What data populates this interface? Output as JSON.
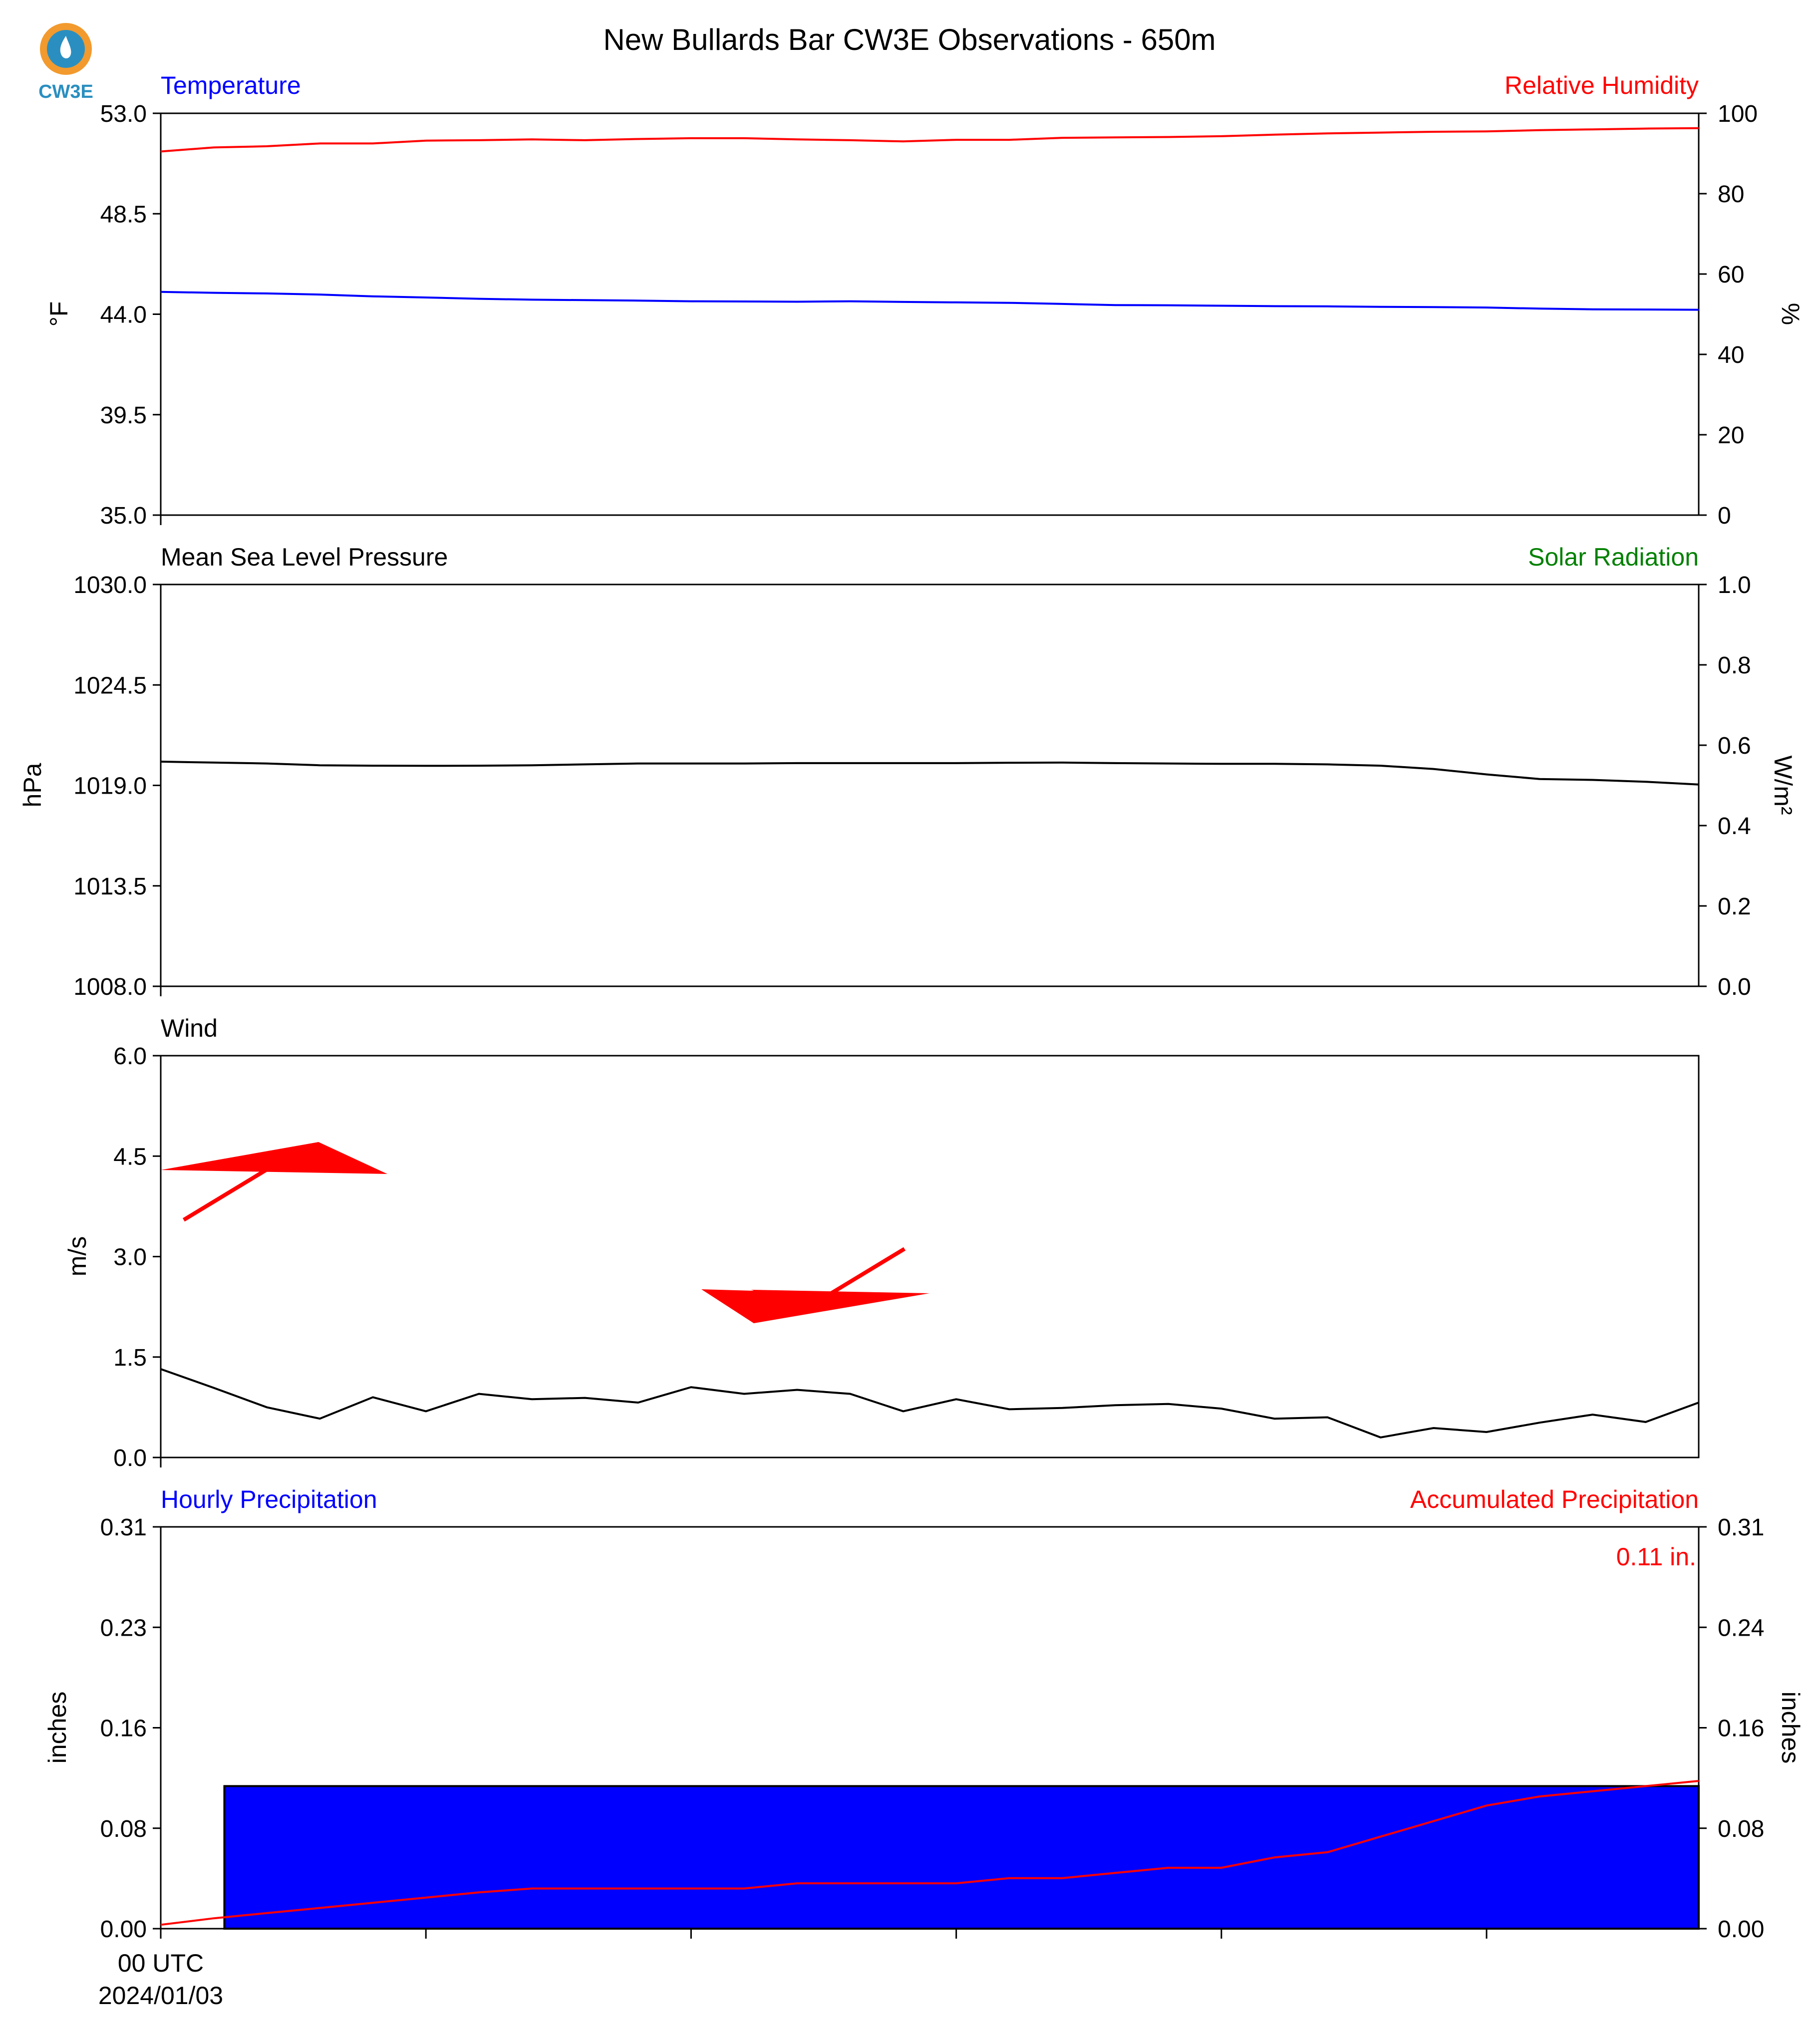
{
  "title": "New Bullards Bar CW3E Observations - 650m",
  "logo": {
    "text": "CW3E",
    "colors": {
      "ring": "#f29a2e",
      "drop": "#2a8fc0",
      "text": "#2a8fc0"
    }
  },
  "colors": {
    "blue": "#0000ff",
    "red": "#ff0000",
    "green": "#008000",
    "black": "#000000",
    "bar_fill": "#0000ff"
  },
  "panels": {
    "temp": {
      "left_title": "Temperature",
      "right_title": "Relative Humidity",
      "left_ylabel": "°F",
      "right_ylabel": "%",
      "left_ticks": [
        "53.0",
        "48.5",
        "44.0",
        "39.5",
        "35.0"
      ],
      "right_ticks": [
        "100",
        "80",
        "60",
        "40",
        "20",
        "0"
      ]
    },
    "pres": {
      "left_title": "Mean Sea Level Pressure",
      "right_title": "Solar Radiation",
      "left_ylabel": "hPa",
      "right_ylabel": "W/m²",
      "left_ticks": [
        "1030.0",
        "1024.5",
        "1019.0",
        "1013.5",
        "1008.0"
      ],
      "right_ticks": [
        "1.0",
        "0.8",
        "0.6",
        "0.4",
        "0.2",
        "0.0"
      ]
    },
    "wind": {
      "left_title": "Wind",
      "left_ylabel": "m/s",
      "left_ticks": [
        "6.0",
        "4.5",
        "3.0",
        "1.5",
        "0.0"
      ]
    },
    "precip": {
      "left_title": "Hourly Precipitation",
      "right_title": "Accumulated Precipitation",
      "left_ylabel": "inches",
      "right_ylabel": "inches",
      "left_ticks": [
        "0.31",
        "0.23",
        "0.16",
        "0.08",
        "0.00"
      ],
      "right_ticks": [
        "0.31",
        "0.24",
        "0.16",
        "0.08",
        "0.00"
      ],
      "total_label": "0.11 in."
    }
  },
  "x_axis": {
    "first_tick_line1": "00 UTC",
    "first_tick_line2": "2024/01/03"
  },
  "chart_data": [
    {
      "type": "line",
      "title": "Temperature",
      "ylabel": "°F",
      "xlim": [
        0,
        29
      ],
      "ylim": [
        35.0,
        53.0
      ],
      "series": [
        {
          "name": "Temperature",
          "color": "#0000ff",
          "x": [
            0,
            1,
            2,
            3,
            4,
            5,
            6,
            7,
            8,
            9,
            10,
            11,
            12,
            13,
            14,
            15,
            16,
            17,
            18,
            19,
            20,
            21,
            22,
            23,
            24,
            25,
            26,
            27,
            28,
            29
          ],
          "values": [
            45.0,
            44.96,
            44.93,
            44.88,
            44.8,
            44.75,
            44.69,
            44.65,
            44.63,
            44.61,
            44.58,
            44.57,
            44.56,
            44.58,
            44.55,
            44.53,
            44.51,
            44.46,
            44.41,
            44.4,
            44.38,
            44.36,
            44.35,
            44.33,
            44.32,
            44.3,
            44.25,
            44.22,
            44.21,
            44.2
          ]
        }
      ]
    },
    {
      "type": "line",
      "title": "Relative Humidity",
      "ylabel": "%",
      "ylim": [
        0,
        100
      ],
      "series": [
        {
          "name": "Relative Humidity",
          "color": "#ff0000",
          "x": [
            0,
            1,
            2,
            3,
            4,
            5,
            6,
            7,
            8,
            9,
            10,
            11,
            12,
            13,
            14,
            15,
            16,
            17,
            18,
            19,
            20,
            21,
            22,
            23,
            24,
            25,
            26,
            27,
            28,
            29
          ],
          "values": [
            90.5,
            91.5,
            91.8,
            92.5,
            92.5,
            93.2,
            93.3,
            93.5,
            93.3,
            93.6,
            93.8,
            93.8,
            93.5,
            93.3,
            93.0,
            93.4,
            93.4,
            93.9,
            94.0,
            94.1,
            94.3,
            94.7,
            95.0,
            95.2,
            95.4,
            95.5,
            95.8,
            96.0,
            96.2,
            96.3
          ]
        }
      ]
    },
    {
      "type": "line",
      "title": "Mean Sea Level Pressure",
      "ylabel": "hPa",
      "ylim": [
        1008.0,
        1030.0
      ],
      "series": [
        {
          "name": "Mean Sea Level Pressure",
          "color": "#000000",
          "x": [
            0,
            1,
            2,
            3,
            4,
            5,
            6,
            7,
            8,
            9,
            10,
            11,
            12,
            13,
            14,
            15,
            16,
            17,
            18,
            19,
            20,
            21,
            22,
            23,
            24,
            25,
            26,
            27,
            28,
            29
          ],
          "values": [
            1020.3,
            1020.25,
            1020.2,
            1020.1,
            1020.08,
            1020.07,
            1020.08,
            1020.1,
            1020.15,
            1020.2,
            1020.2,
            1020.2,
            1020.22,
            1020.22,
            1020.22,
            1020.22,
            1020.24,
            1020.25,
            1020.22,
            1020.2,
            1020.18,
            1020.18,
            1020.15,
            1020.08,
            1019.9,
            1019.6,
            1019.35,
            1019.3,
            1019.2,
            1019.05
          ]
        }
      ]
    },
    {
      "type": "line",
      "title": "Wind",
      "ylabel": "m/s",
      "ylim": [
        0.0,
        6.0
      ],
      "series": [
        {
          "name": "Wind",
          "color": "#000000",
          "x": [
            0,
            1,
            2,
            3,
            4,
            5,
            6,
            7,
            8,
            9,
            10,
            11,
            12,
            13,
            14,
            15,
            16,
            17,
            18,
            19,
            20,
            21,
            22,
            23,
            24,
            25,
            26,
            27,
            28,
            29
          ],
          "values": [
            1.32,
            1.04,
            0.75,
            0.58,
            0.9,
            0.69,
            0.95,
            0.87,
            0.89,
            0.82,
            1.05,
            0.95,
            1.01,
            0.95,
            0.69,
            0.87,
            0.72,
            0.74,
            0.78,
            0.8,
            0.73,
            0.58,
            0.6,
            0.3,
            0.44,
            0.38,
            0.52,
            0.64,
            0.53,
            0.82
          ]
        }
      ],
      "barbs": [
        {
          "x": 0.5,
          "y": 3.6,
          "direction": "northeast",
          "flag_count": 1
        },
        {
          "x": 14.0,
          "y": 3.1,
          "direction": "northeast",
          "flag_count": 1
        }
      ]
    },
    {
      "type": "bar",
      "title": "Hourly Precipitation",
      "ylabel": "inches",
      "ylim": [
        0.0,
        0.31
      ],
      "bars": [
        {
          "x_start": 1.2,
          "x_end": 29,
          "value": 0.11
        }
      ]
    },
    {
      "type": "line",
      "title": "Accumulated Precipitation",
      "ylabel": "inches",
      "ylim": [
        0.0,
        0.31
      ],
      "series": [
        {
          "name": "Accumulated Precipitation",
          "color": "#ff0000",
          "x": [
            0,
            1,
            2,
            3,
            4,
            5,
            6,
            7,
            8,
            9,
            10,
            11,
            12,
            13,
            14,
            15,
            16,
            17,
            18,
            19,
            20,
            21,
            22,
            23,
            24,
            25,
            26,
            27,
            28,
            29
          ],
          "values": [
            0.003,
            0.008,
            0.012,
            0.016,
            0.02,
            0.024,
            0.028,
            0.031,
            0.031,
            0.031,
            0.031,
            0.031,
            0.035,
            0.035,
            0.035,
            0.035,
            0.039,
            0.039,
            0.043,
            0.047,
            0.047,
            0.055,
            0.059,
            0.071,
            0.083,
            0.095,
            0.102,
            0.106,
            0.11,
            0.114
          ]
        }
      ],
      "annotation": "0.11 in."
    }
  ]
}
